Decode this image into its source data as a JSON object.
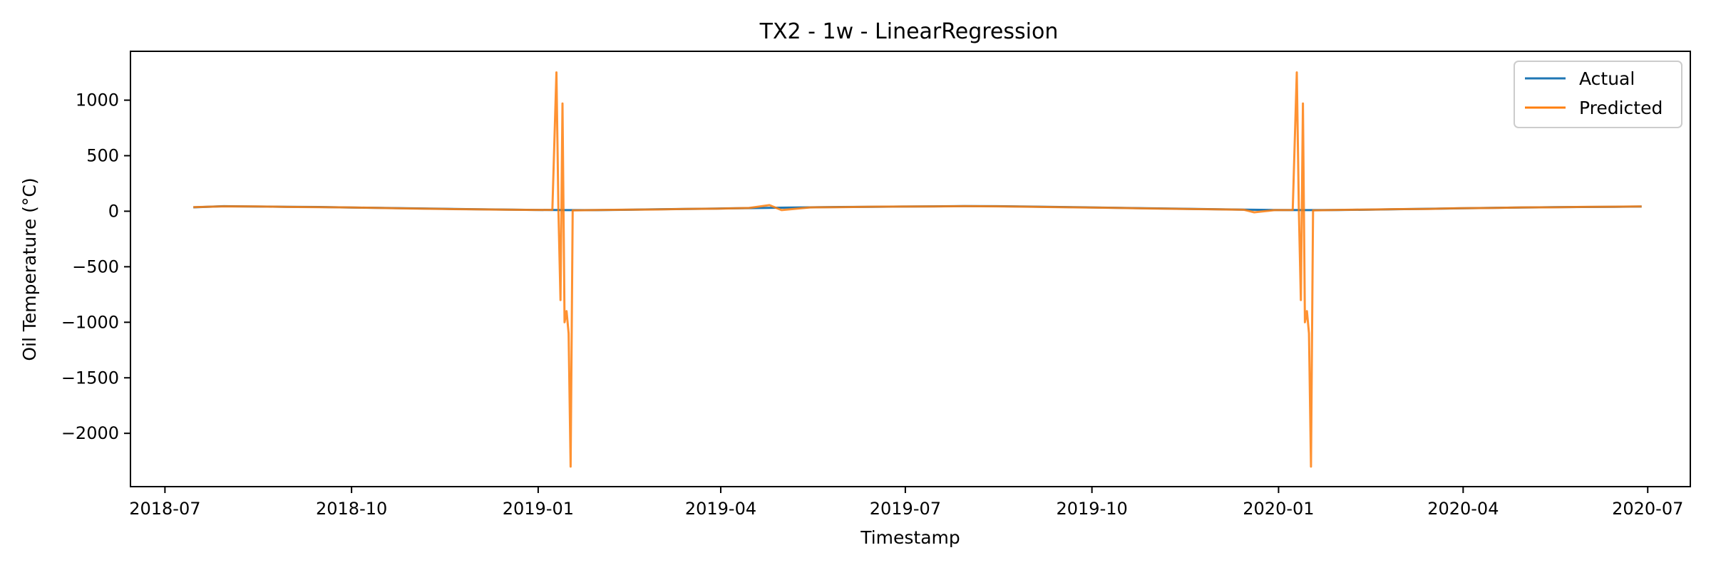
{
  "chart_data": {
    "type": "line",
    "title": "TX2 - 1w - LinearRegression",
    "xlabel": "Timestamp",
    "ylabel": "Oil Temperature (°C)",
    "x_axis_type": "date",
    "xlim": [
      "2018-06-14",
      "2020-07-22"
    ],
    "ylim": [
      -2480,
      1440
    ],
    "xticks": [
      {
        "value": "2018-07-01",
        "label": "2018-07"
      },
      {
        "value": "2018-10-01",
        "label": "2018-10"
      },
      {
        "value": "2019-01-01",
        "label": "2019-01"
      },
      {
        "value": "2019-04-01",
        "label": "2019-04"
      },
      {
        "value": "2019-07-01",
        "label": "2019-07"
      },
      {
        "value": "2019-10-01",
        "label": "2019-10"
      },
      {
        "value": "2020-01-01",
        "label": "2020-01"
      },
      {
        "value": "2020-04-01",
        "label": "2020-04"
      },
      {
        "value": "2020-07-01",
        "label": "2020-07"
      }
    ],
    "yticks": [
      {
        "value": 1000,
        "label": "1000"
      },
      {
        "value": 500,
        "label": "500"
      },
      {
        "value": 0,
        "label": "0"
      },
      {
        "value": -500,
        "label": "−500"
      },
      {
        "value": -1000,
        "label": "−1000"
      },
      {
        "value": -1500,
        "label": "−1500"
      },
      {
        "value": -2000,
        "label": "−2000"
      }
    ],
    "grid": false,
    "legend_position": "top-right",
    "series": [
      {
        "name": "Actual",
        "color": "#1f77b4",
        "points": [
          [
            "2018-07-15",
            35
          ],
          [
            "2018-07-30",
            45
          ],
          [
            "2018-08-15",
            42
          ],
          [
            "2018-08-30",
            40
          ],
          [
            "2018-09-15",
            38
          ],
          [
            "2018-09-30",
            33
          ],
          [
            "2018-10-15",
            30
          ],
          [
            "2018-10-30",
            26
          ],
          [
            "2018-11-15",
            22
          ],
          [
            "2018-11-30",
            18
          ],
          [
            "2018-12-15",
            15
          ],
          [
            "2018-12-30",
            12
          ],
          [
            "2019-01-15",
            10
          ],
          [
            "2019-01-30",
            10
          ],
          [
            "2019-02-15",
            13
          ],
          [
            "2019-02-28",
            17
          ],
          [
            "2019-03-15",
            20
          ],
          [
            "2019-03-30",
            24
          ],
          [
            "2019-04-15",
            28
          ],
          [
            "2019-04-30",
            32
          ],
          [
            "2019-05-15",
            35
          ],
          [
            "2019-05-30",
            38
          ],
          [
            "2019-06-15",
            40
          ],
          [
            "2019-06-30",
            42
          ],
          [
            "2019-07-15",
            44
          ],
          [
            "2019-07-30",
            46
          ],
          [
            "2019-08-15",
            45
          ],
          [
            "2019-08-30",
            42
          ],
          [
            "2019-09-15",
            38
          ],
          [
            "2019-09-30",
            34
          ],
          [
            "2019-10-15",
            30
          ],
          [
            "2019-10-30",
            26
          ],
          [
            "2019-11-15",
            22
          ],
          [
            "2019-11-30",
            18
          ],
          [
            "2019-12-15",
            14
          ],
          [
            "2019-12-30",
            11
          ],
          [
            "2020-01-15",
            10
          ],
          [
            "2020-01-30",
            11
          ],
          [
            "2020-02-15",
            14
          ],
          [
            "2020-02-29",
            18
          ],
          [
            "2020-03-15",
            22
          ],
          [
            "2020-03-30",
            26
          ],
          [
            "2020-04-15",
            30
          ],
          [
            "2020-04-30",
            33
          ],
          [
            "2020-05-15",
            36
          ],
          [
            "2020-05-30",
            38
          ],
          [
            "2020-06-15",
            40
          ],
          [
            "2020-06-28",
            42
          ]
        ]
      },
      {
        "name": "Predicted",
        "color": "#ff7f0e",
        "points": [
          [
            "2018-07-15",
            36
          ],
          [
            "2018-07-30",
            44
          ],
          [
            "2018-08-15",
            43
          ],
          [
            "2018-08-30",
            39
          ],
          [
            "2018-09-15",
            37
          ],
          [
            "2018-09-30",
            34
          ],
          [
            "2018-10-15",
            29
          ],
          [
            "2018-10-30",
            25
          ],
          [
            "2018-11-15",
            20
          ],
          [
            "2018-11-30",
            17
          ],
          [
            "2018-12-15",
            14
          ],
          [
            "2018-12-30",
            12
          ],
          [
            "2019-01-08",
            12
          ],
          [
            "2019-01-10",
            1250
          ],
          [
            "2019-01-11",
            10
          ],
          [
            "2019-01-12",
            -800
          ],
          [
            "2019-01-13",
            970
          ],
          [
            "2019-01-14",
            -1000
          ],
          [
            "2019-01-15",
            -900
          ],
          [
            "2019-01-16",
            -1100
          ],
          [
            "2019-01-17",
            -2300
          ],
          [
            "2019-01-18",
            8
          ],
          [
            "2019-01-30",
            11
          ],
          [
            "2019-02-15",
            14
          ],
          [
            "2019-02-28",
            16
          ],
          [
            "2019-03-15",
            21
          ],
          [
            "2019-03-30",
            23
          ],
          [
            "2019-04-15",
            29
          ],
          [
            "2019-04-25",
            55
          ],
          [
            "2019-05-01",
            10
          ],
          [
            "2019-05-15",
            34
          ],
          [
            "2019-05-30",
            37
          ],
          [
            "2019-06-15",
            41
          ],
          [
            "2019-06-30",
            42
          ],
          [
            "2019-07-15",
            43
          ],
          [
            "2019-07-30",
            45
          ],
          [
            "2019-08-15",
            44
          ],
          [
            "2019-08-30",
            41
          ],
          [
            "2019-09-15",
            37
          ],
          [
            "2019-09-30",
            33
          ],
          [
            "2019-10-15",
            29
          ],
          [
            "2019-10-30",
            25
          ],
          [
            "2019-11-15",
            21
          ],
          [
            "2019-11-30",
            17
          ],
          [
            "2019-12-15",
            13
          ],
          [
            "2019-12-20",
            -10
          ],
          [
            "2019-12-30",
            10
          ],
          [
            "2020-01-08",
            11
          ],
          [
            "2020-01-10",
            1250
          ],
          [
            "2020-01-11",
            10
          ],
          [
            "2020-01-12",
            -800
          ],
          [
            "2020-01-13",
            970
          ],
          [
            "2020-01-14",
            -1000
          ],
          [
            "2020-01-15",
            -900
          ],
          [
            "2020-01-16",
            -1100
          ],
          [
            "2020-01-17",
            -2300
          ],
          [
            "2020-01-18",
            8
          ],
          [
            "2020-01-30",
            12
          ],
          [
            "2020-02-15",
            15
          ],
          [
            "2020-02-29",
            19
          ],
          [
            "2020-03-15",
            21
          ],
          [
            "2020-03-30",
            27
          ],
          [
            "2020-04-15",
            29
          ],
          [
            "2020-04-30",
            34
          ],
          [
            "2020-05-15",
            35
          ],
          [
            "2020-05-30",
            39
          ],
          [
            "2020-06-15",
            41
          ],
          [
            "2020-06-28",
            43
          ]
        ]
      }
    ]
  }
}
